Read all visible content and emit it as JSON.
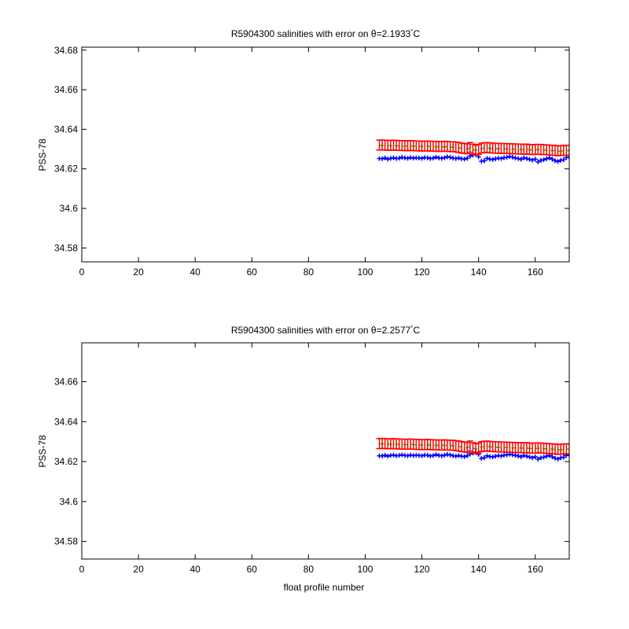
{
  "figure": {
    "background": "#ffffff"
  },
  "colors": {
    "calibrated": "#ff0000",
    "raw": "#0000ff",
    "mapped": "#00cc00"
  },
  "chart_data": [
    {
      "type": "scatter",
      "title_prefix": "R5904300 salinities with error on θ=2.1933",
      "title_suffix": "C",
      "title_degree": "°",
      "xlabel": "",
      "ylabel": "PSS-78",
      "xlim": [
        0,
        172
      ],
      "ylim": [
        34.573,
        34.6815
      ],
      "xticks": [
        "0",
        "20",
        "40",
        "60",
        "80",
        "100",
        "120",
        "140",
        "160"
      ],
      "xtick_values": [
        0,
        20,
        40,
        60,
        80,
        100,
        120,
        140,
        160
      ],
      "yticks": [
        "34.58",
        "34.6",
        "34.62",
        "34.64",
        "34.66",
        "34.68"
      ],
      "ytick_values": [
        34.58,
        34.6,
        34.62,
        34.64,
        34.66,
        34.68
      ],
      "x_start": 105,
      "x_end": 172,
      "series": [
        {
          "color": "#0000ff",
          "marker": "plus",
          "values": [
            34.6252,
            34.6251,
            34.6255,
            34.6249,
            34.6253,
            34.6256,
            34.6252,
            34.6254,
            34.6258,
            34.6255,
            34.6253,
            34.6257,
            34.6254,
            34.6256,
            34.6255,
            34.6253,
            34.6257,
            34.6256,
            34.6252,
            34.6254,
            34.6259,
            34.6255,
            34.6253,
            34.6256,
            34.6261,
            34.6258,
            34.6254,
            34.6252,
            34.6255,
            34.6251,
            34.6249,
            34.6253,
            34.6264,
            34.6269,
            34.6274,
            34.6261,
            34.6238,
            34.6241,
            34.6253,
            34.6249,
            34.6247,
            34.6251,
            34.6254,
            34.6252,
            34.6256,
            34.6258,
            34.6262,
            34.6259,
            34.6255,
            34.6252,
            34.6248,
            34.6256,
            34.6252,
            34.6248,
            34.6244,
            34.6249,
            34.6235,
            34.6243,
            34.6246,
            34.6251,
            34.6256,
            34.6249,
            34.6241,
            34.6237,
            34.6243,
            34.6246,
            34.6257,
            34.6259
          ]
        },
        {
          "color": "#00cc00",
          "marker": "line",
          "values": [
            34.6318,
            34.6319,
            34.6318,
            34.6317,
            34.6317,
            34.6318,
            34.6317,
            34.6316,
            34.6316,
            34.6315,
            34.6315,
            34.6316,
            34.6315,
            34.6314,
            34.6314,
            34.6313,
            34.6313,
            34.6314,
            34.6313,
            34.6312,
            34.6312,
            34.6311,
            34.6311,
            34.6312,
            34.6311,
            34.631,
            34.631,
            34.6308,
            34.6306,
            34.6303,
            34.6301,
            34.6299,
            34.6306,
            34.6298,
            34.6293,
            34.6296,
            34.6303,
            34.6305,
            34.6306,
            34.6304,
            34.6303,
            34.6302,
            34.6302,
            34.6301,
            34.6301,
            34.63,
            34.63,
            34.6299,
            34.6299,
            34.6298,
            34.6298,
            34.6297,
            34.6298,
            34.6296,
            34.6295,
            34.6296,
            34.6297,
            34.6296,
            34.6295,
            34.6294,
            34.6293,
            34.6292,
            34.6291,
            34.6289,
            34.629,
            34.6291,
            34.6292,
            34.6292
          ]
        },
        {
          "color": "#ff0000",
          "marker": "errorbar",
          "values": [
            34.632,
            34.6321,
            34.632,
            34.6319,
            34.6319,
            34.632,
            34.6319,
            34.6318,
            34.6318,
            34.6317,
            34.6317,
            34.6318,
            34.6317,
            34.6316,
            34.6316,
            34.6315,
            34.6315,
            34.6316,
            34.6315,
            34.6314,
            34.6314,
            34.6313,
            34.6313,
            34.6314,
            34.6313,
            34.6312,
            34.6312,
            34.631,
            34.6308,
            34.6305,
            34.6303,
            34.6301,
            34.6308,
            34.63,
            34.6295,
            34.6298,
            34.6305,
            34.6307,
            34.6308,
            34.6306,
            34.6305,
            34.6304,
            34.6304,
            34.6303,
            34.6303,
            34.6302,
            34.6302,
            34.6301,
            34.6301,
            34.63,
            34.63,
            34.6299,
            34.63,
            34.6298,
            34.6297,
            34.6298,
            34.6299,
            34.6298,
            34.6297,
            34.6296,
            34.6295,
            34.6294,
            34.6293,
            34.6291,
            34.6292,
            34.6293,
            34.6294,
            34.6294
          ],
          "error": 0.0025
        }
      ]
    },
    {
      "type": "scatter",
      "title_prefix": "R5904300 salinities with error on θ=2.2577",
      "title_suffix": "C",
      "title_degree": "°",
      "xlabel": "float profile number",
      "ylabel": "PSS-78",
      "xlim": [
        0,
        172
      ],
      "ylim": [
        34.5712,
        34.6795
      ],
      "xticks": [
        "0",
        "20",
        "40",
        "60",
        "80",
        "100",
        "120",
        "140",
        "160"
      ],
      "xtick_values": [
        0,
        20,
        40,
        60,
        80,
        100,
        120,
        140,
        160
      ],
      "yticks": [
        "34.58",
        "34.6",
        "34.62",
        "34.64",
        "34.66"
      ],
      "ytick_values": [
        34.58,
        34.6,
        34.62,
        34.64,
        34.66
      ],
      "x_start": 105,
      "x_end": 172,
      "series": [
        {
          "color": "#0000ff",
          "marker": "plus",
          "values": [
            34.6229,
            34.6228,
            34.6232,
            34.6227,
            34.6231,
            34.6233,
            34.6229,
            34.6231,
            34.6234,
            34.6231,
            34.6229,
            34.6233,
            34.623,
            34.6232,
            34.6231,
            34.6229,
            34.6233,
            34.6232,
            34.6228,
            34.623,
            34.6235,
            34.6231,
            34.6229,
            34.6232,
            34.6236,
            34.6233,
            34.6229,
            34.6227,
            34.623,
            34.6227,
            34.6225,
            34.6229,
            34.6238,
            34.6243,
            34.6247,
            34.6236,
            34.6216,
            34.6219,
            34.6229,
            34.6225,
            34.6223,
            34.6227,
            34.623,
            34.6228,
            34.6232,
            34.6234,
            34.6237,
            34.6234,
            34.6231,
            34.6228,
            34.6224,
            34.6231,
            34.6227,
            34.6223,
            34.6219,
            34.6224,
            34.6212,
            34.6219,
            34.6222,
            34.6227,
            34.6231,
            34.6224,
            34.6217,
            34.6213,
            34.6219,
            34.6222,
            34.6231,
            34.6233
          ]
        },
        {
          "color": "#00cc00",
          "marker": "line",
          "values": [
            34.6288,
            34.6289,
            34.6288,
            34.6287,
            34.6287,
            34.6288,
            34.6287,
            34.6286,
            34.6286,
            34.6285,
            34.6285,
            34.6286,
            34.6285,
            34.6284,
            34.6284,
            34.6283,
            34.6283,
            34.6284,
            34.6283,
            34.6282,
            34.6282,
            34.6281,
            34.6281,
            34.6282,
            34.6281,
            34.628,
            34.628,
            34.6278,
            34.6276,
            34.6273,
            34.6271,
            34.6269,
            34.6276,
            34.6268,
            34.6263,
            34.6266,
            34.6273,
            34.6275,
            34.6276,
            34.6274,
            34.6273,
            34.6272,
            34.6272,
            34.6271,
            34.6271,
            34.627,
            34.627,
            34.6269,
            34.6269,
            34.6268,
            34.6268,
            34.6267,
            34.6268,
            34.6266,
            34.6265,
            34.6266,
            34.6267,
            34.6266,
            34.6265,
            34.6264,
            34.6263,
            34.6262,
            34.6261,
            34.6259,
            34.626,
            34.6261,
            34.6262,
            34.6262
          ]
        },
        {
          "color": "#ff0000",
          "marker": "errorbar",
          "values": [
            34.629,
            34.6291,
            34.629,
            34.6289,
            34.6289,
            34.629,
            34.6289,
            34.6288,
            34.6288,
            34.6287,
            34.6287,
            34.6288,
            34.6287,
            34.6286,
            34.6286,
            34.6285,
            34.6285,
            34.6286,
            34.6285,
            34.6284,
            34.6284,
            34.6283,
            34.6283,
            34.6284,
            34.6283,
            34.6282,
            34.6282,
            34.628,
            34.6278,
            34.6275,
            34.6273,
            34.6271,
            34.6278,
            34.627,
            34.6265,
            34.6268,
            34.6275,
            34.6277,
            34.6278,
            34.6276,
            34.6275,
            34.6274,
            34.6274,
            34.6273,
            34.6273,
            34.6272,
            34.6272,
            34.6271,
            34.6271,
            34.627,
            34.627,
            34.6269,
            34.627,
            34.6268,
            34.6267,
            34.6268,
            34.6269,
            34.6268,
            34.6267,
            34.6266,
            34.6265,
            34.6264,
            34.6263,
            34.6261,
            34.6262,
            34.6263,
            34.6264,
            34.6264
          ],
          "error": 0.0025
        }
      ]
    }
  ]
}
